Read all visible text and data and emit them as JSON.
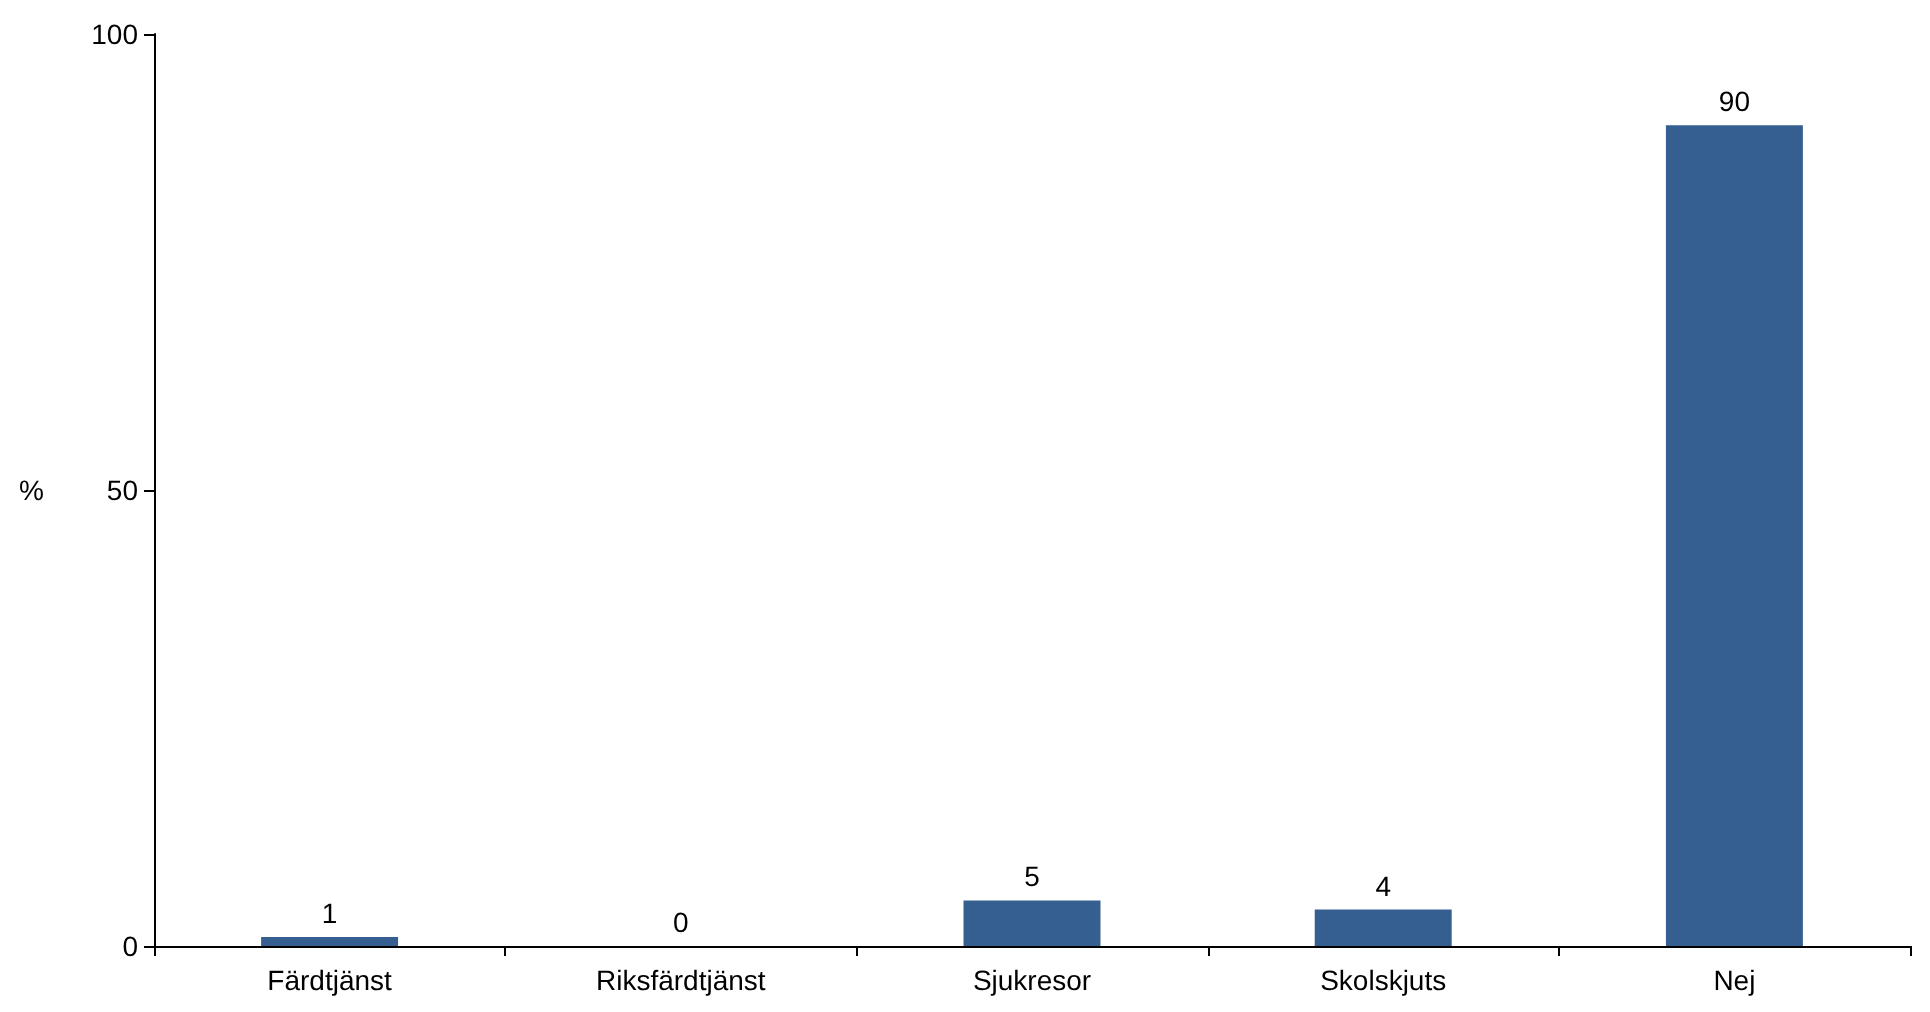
{
  "chart_data": {
    "type": "bar",
    "ylabel": "%",
    "categories": [
      "Färdtjänst",
      "Riksfärdtjänst",
      "Sjukresor",
      "Skolskjuts",
      "Nej"
    ],
    "values": [
      1,
      0,
      5,
      4,
      90
    ],
    "color": "#365f91",
    "ylim": [
      0,
      100
    ],
    "yticks": [
      0,
      50,
      100
    ],
    "data_labels": true,
    "grid": false
  }
}
